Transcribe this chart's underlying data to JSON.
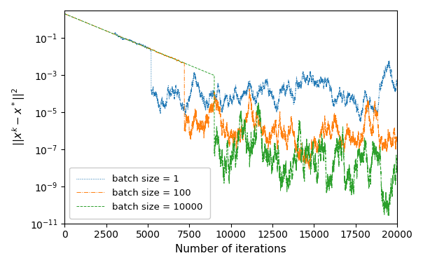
{
  "xlabel": "Number of iterations",
  "ylabel": "$||x^k - x^*||^2$",
  "xlim": [
    0,
    20000
  ],
  "ylim": [
    1e-11,
    3
  ],
  "batch1_color": "#1f77b4",
  "batch100_color": "#ff7f0e",
  "batch10000_color": "#2ca02c",
  "legend_labels": [
    "batch size = 1",
    "batch size = 100",
    "batch size = 10000"
  ],
  "figsize": [
    6.04,
    3.78
  ],
  "dpi": 100,
  "start_val": 2.0,
  "decay_rate": 0.00085,
  "phase1": 5200,
  "phase100": 7200,
  "phase10000": 9000,
  "floor1": 0.00015,
  "floor100": 1.2e-06,
  "floor10000": 5e-08,
  "seed": 7
}
